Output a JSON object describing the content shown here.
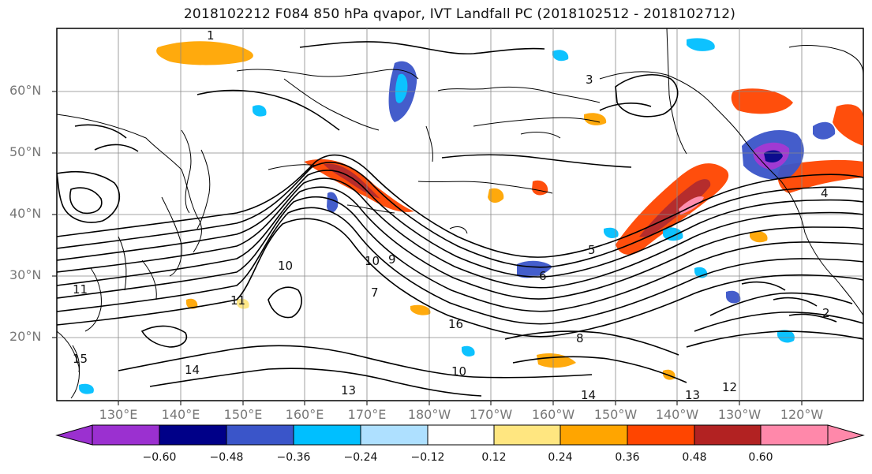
{
  "title": "2018102212 F084 850 hPa qvapor, IVT Landfall PC (2018102512 - 2018102712)",
  "map": {
    "lat_labels": [
      "60°N",
      "50°N",
      "40°N",
      "30°N",
      "20°N"
    ],
    "lon_labels": [
      "130°E",
      "140°E",
      "150°E",
      "160°E",
      "170°E",
      "180°W",
      "170°W",
      "160°W",
      "150°W",
      "140°W",
      "130°W",
      "120°W"
    ],
    "contour_labels": [
      "1",
      "3",
      "5",
      "10",
      "10",
      "10",
      "11",
      "11",
      "12",
      "13",
      "13",
      "14",
      "14",
      "15",
      "16",
      "2",
      "4",
      "6",
      "7",
      "9",
      "8"
    ]
  },
  "colorbar": {
    "levels": [
      "−0.60",
      "−0.48",
      "−0.36",
      "−0.24",
      "−0.12",
      "0.12",
      "0.24",
      "0.36",
      "0.48",
      "0.60"
    ],
    "colors": [
      "#9b30d0",
      "#000088",
      "#3a55c9",
      "#00bfff",
      "#aee0ff",
      "#ffffff",
      "#ffe680",
      "#ffa500",
      "#ff4500",
      "#b22222",
      "#ff88aa"
    ]
  }
}
